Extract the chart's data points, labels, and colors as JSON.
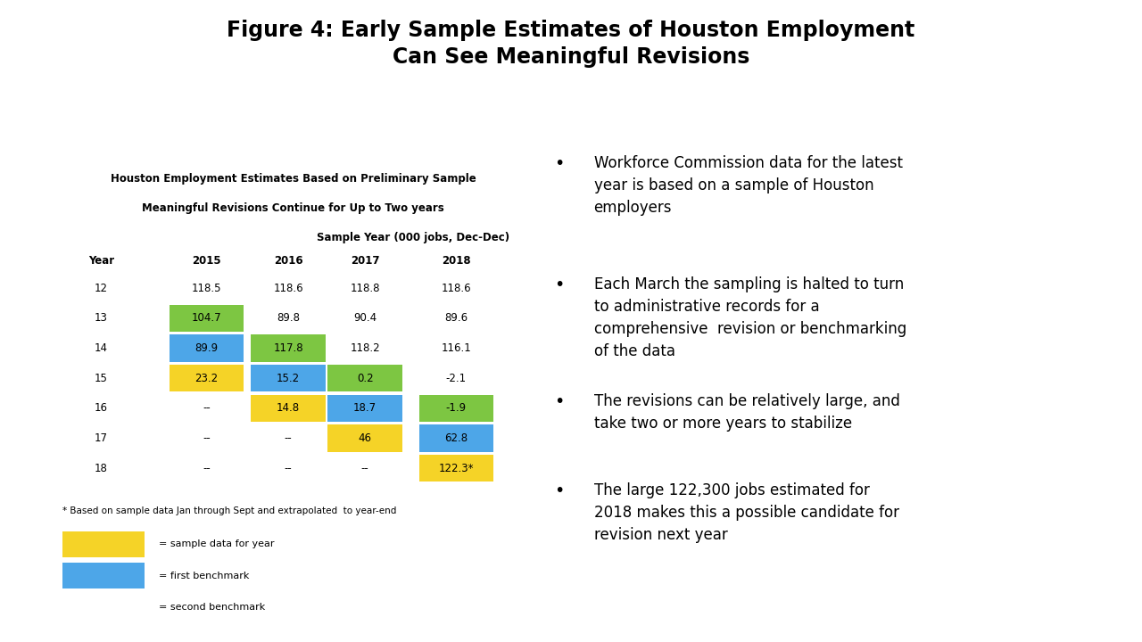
{
  "title": "Figure 4: Early Sample Estimates of Houston Employment\nCan See Meaningful Revisions",
  "table_title_line1": "Houston Employment Estimates Based on Preliminary Sample",
  "table_title_line2": "Meaningful Revisions Continue for Up to Two years",
  "table_subtitle": "Sample Year (000 jobs, Dec-Dec)",
  "years": [
    12,
    13,
    14,
    15,
    16,
    17,
    18
  ],
  "sample_years": [
    2015,
    2016,
    2017,
    2018
  ],
  "table_data": {
    "12": {
      "2015": "118.5",
      "2016": "118.6",
      "2017": "118.8",
      "2018": "118.6"
    },
    "13": {
      "2015": "104.7",
      "2016": "89.8",
      "2017": "90.4",
      "2018": "89.6"
    },
    "14": {
      "2015": "89.9",
      "2016": "117.8",
      "2017": "118.2",
      "2018": "116.1"
    },
    "15": {
      "2015": "23.2",
      "2016": "15.2",
      "2017": "0.2",
      "2018": "-2.1"
    },
    "16": {
      "2015": "--",
      "2016": "14.8",
      "2017": "18.7",
      "2018": "-1.9"
    },
    "17": {
      "2015": "--",
      "2016": "--",
      "2017": "46",
      "2018": "62.8"
    },
    "18": {
      "2015": "--",
      "2016": "--",
      "2017": "--",
      "2018": "122.3*"
    }
  },
  "cell_colors": {
    "13_2015": "#7dc642",
    "14_2015": "#4da6e8",
    "14_2016": "#7dc642",
    "15_2015": "#f5d327",
    "15_2016": "#4da6e8",
    "15_2017": "#7dc642",
    "16_2016": "#f5d327",
    "16_2017": "#4da6e8",
    "16_2018": "#7dc642",
    "17_2017": "#f5d327",
    "17_2018": "#4da6e8",
    "18_2018": "#f5d327"
  },
  "footnote": "* Based on sample data Jan through Sept and extrapolated  to year-end",
  "legend_items": [
    {
      "color": "#f5d327",
      "label": "= sample data for year"
    },
    {
      "color": "#4da6e8",
      "label": "= first benchmark"
    },
    {
      "color": "#7dc642",
      "label": "= second benchmark"
    }
  ],
  "bullet_points": [
    "Workforce Commission data for the latest\nyear is based on a sample of Houston\nemployers",
    "Each March the sampling is halted to turn\nto administrative records for a\ncomprehensive  revision or benchmarking\nof the data",
    "The revisions can be relatively large, and\ntake two or more years to stabilize",
    "The large 122,300 jobs estimated for\n2018 makes this a possible candidate for\nrevision next year"
  ],
  "bg_color": "#ffffff",
  "title_fontsize": 17,
  "table_title_fontsize": 8.5,
  "table_data_fontsize": 8.5,
  "bullet_fontsize": 12
}
